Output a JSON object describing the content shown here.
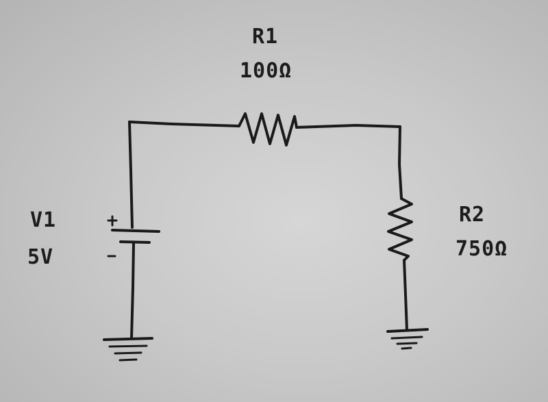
{
  "components": {
    "r1": {
      "name": "R1",
      "value": "100Ω"
    },
    "r2": {
      "name": "R2",
      "value": "750Ω"
    },
    "v1": {
      "name": "V1",
      "value": "5V",
      "plus": "+",
      "minus": "-"
    }
  }
}
